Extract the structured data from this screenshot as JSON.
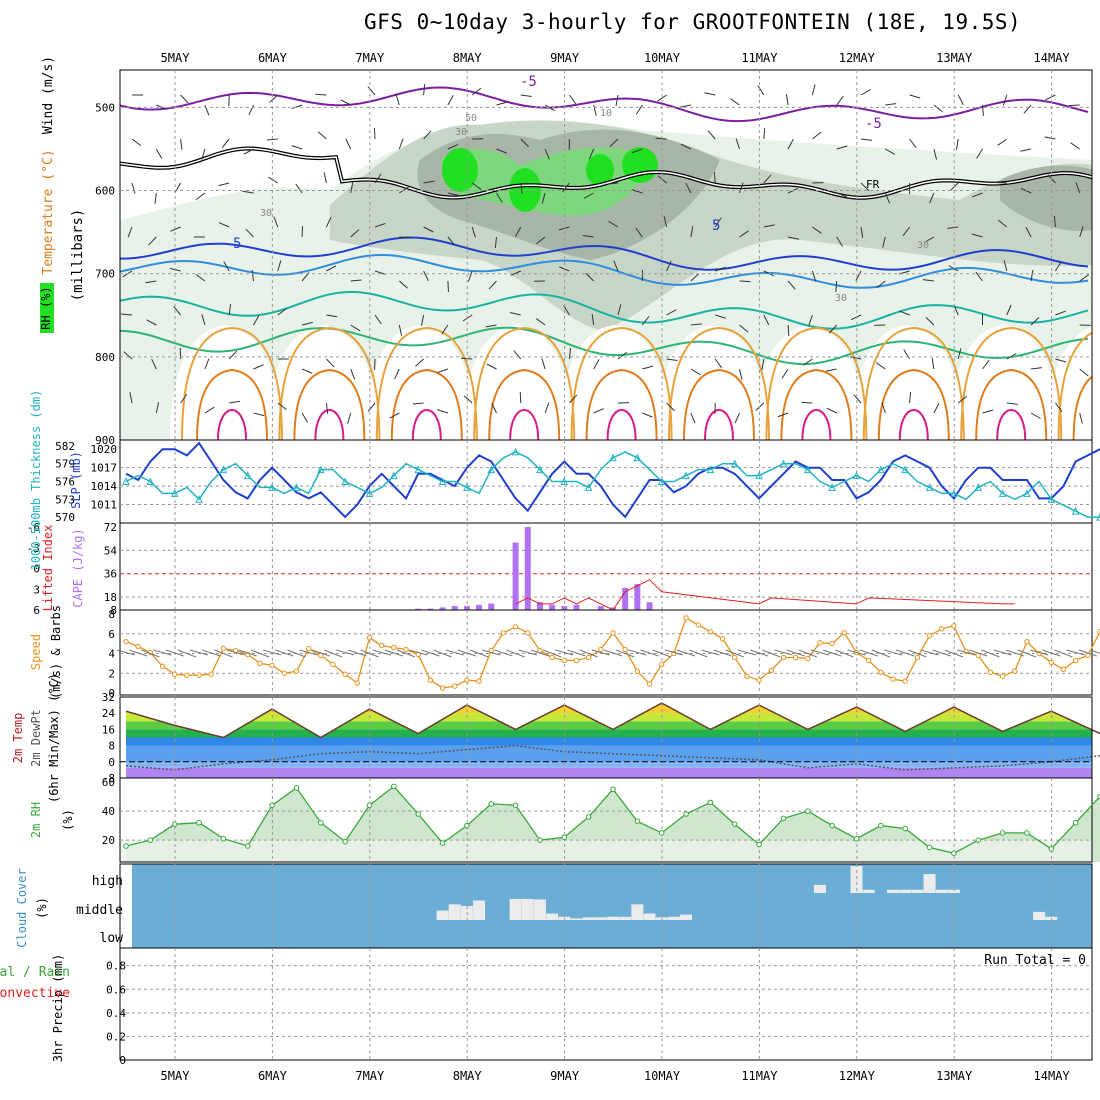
{
  "title": "GFS 0~10day 3-hourly for GROOTFONTEIN (18E, 19.5S)",
  "days": [
    "5MAY",
    "6MAY",
    "7MAY",
    "8MAY",
    "9MAY",
    "10MAY",
    "11MAY",
    "12MAY",
    "13MAY",
    "14MAY"
  ],
  "colors": {
    "rh_light": "#e8f2e8",
    "rh_gray1": "#c8d6c8",
    "rh_gray2": "#a7b6a7",
    "rh_green1": "#7dd87d",
    "rh_green2": "#21e021",
    "slp": "#1f3fcf",
    "thickness": "#22b3c3",
    "cape": "#b072f2",
    "lifted_index": "#e02020",
    "wind": "#e8921a",
    "barb": "#777777",
    "rh2m": "#3aa83a",
    "cloud_bg": "#6aaed6",
    "cloud_fill": "#ececec"
  },
  "labels": {
    "upper_wind": "Wind (m/s)",
    "upper_temp": "Temperature (°C)",
    "upper_rh": "RH (%)",
    "upper_axis": "(millibars)",
    "slp": "SLP (mb)",
    "thickness": "1000-500mb Thickness (dm)",
    "cape": "CAPE (J/kg)",
    "lifted": "Lifted Index",
    "wind10": "10m Wind",
    "speed": "Speed",
    "barbs": "(m/s) & Barbs",
    "temp2m": "2m Temp",
    "dewpt": "2m DewPt",
    "minmax": "(6hr Min/Max) (°C)",
    "rh2m": "2m RH",
    "rh2m_unit": "(%)",
    "cloud": "Cloud Cover",
    "cloud_unit": "(%)",
    "precip": "3hr Precip (mm)",
    "total_rain": "Total / Rain",
    "convective": "Convective",
    "run_total": "Run Total = 0",
    "fr": "FR"
  },
  "chart_data": [
    {
      "type": "heatmap",
      "name": "upper_air",
      "pressure_ticks": [
        500,
        600,
        700,
        800,
        900
      ],
      "ylim": [
        455,
        900
      ],
      "contour_labels": [
        "-5",
        "-5",
        "5",
        "5",
        "10",
        "50",
        "30",
        "30",
        "30",
        "30"
      ],
      "isotherm_levels": [
        -5,
        0,
        5,
        10,
        15,
        20,
        25,
        30
      ],
      "rh_levels": [
        10,
        30,
        50,
        70,
        90
      ]
    },
    {
      "type": "line",
      "name": "slp_thickness",
      "slp_ticks": [
        1011,
        1014,
        1017,
        1020
      ],
      "thickness_ticks": [
        570,
        573,
        576,
        579,
        582
      ],
      "x": [
        0,
        1,
        2,
        3,
        4,
        5,
        6,
        7,
        8,
        9,
        10,
        11,
        12,
        13,
        14,
        15,
        16,
        17,
        18,
        19,
        20,
        21,
        22,
        23,
        24,
        25,
        26,
        27,
        28,
        29,
        30,
        31,
        32,
        33,
        34,
        35,
        36,
        37,
        38,
        39,
        40,
        41,
        42,
        43,
        44,
        45,
        46,
        47,
        48,
        49,
        50,
        51,
        52,
        53,
        54,
        55,
        56,
        57,
        58,
        59,
        60,
        61,
        62,
        63,
        64,
        65,
        66,
        67,
        68,
        69,
        70,
        71,
        72,
        73,
        74,
        75,
        76,
        77,
        78,
        79,
        80
      ],
      "series": [
        {
          "name": "SLP (mb)",
          "values": [
            1016,
            1015,
            1018,
            1020,
            1020,
            1019,
            1021,
            1018,
            1015,
            1013,
            1012,
            1015,
            1017,
            1015,
            1013,
            1012,
            1013,
            1011,
            1009,
            1011,
            1014,
            1016,
            1014,
            1012,
            1016,
            1016,
            1015,
            1014,
            1017,
            1019,
            1018,
            1015,
            1012,
            1010,
            1013,
            1016,
            1018,
            1016,
            1016,
            1014,
            1011,
            1009,
            1012,
            1015,
            1015,
            1013,
            1014,
            1016,
            1017,
            1017,
            1016,
            1014,
            1012,
            1014,
            1016,
            1018,
            1017,
            1017,
            1015,
            1015,
            1012,
            1013,
            1015,
            1018,
            1019,
            1018,
            1017,
            1014,
            1012,
            1015,
            1017,
            1017,
            1015,
            1015,
            1015,
            1012,
            1012,
            1014,
            1018,
            1019,
            1020
          ]
        },
        {
          "name": "Thickness (dm)",
          "values": [
            576,
            577,
            576,
            574,
            574,
            575,
            573,
            576,
            578,
            579,
            577,
            575,
            575,
            574,
            575,
            574,
            578,
            578,
            576,
            575,
            574,
            575,
            577,
            579,
            578,
            577,
            576,
            576,
            575,
            574,
            578,
            580,
            581,
            580,
            578,
            576,
            576,
            576,
            575,
            578,
            580,
            581,
            580,
            578,
            576,
            576,
            577,
            578,
            578,
            579,
            579,
            577,
            577,
            578,
            579,
            579,
            578,
            576,
            575,
            576,
            577,
            576,
            578,
            579,
            578,
            576,
            575,
            574,
            574,
            573,
            575,
            576,
            574,
            573,
            574,
            576,
            573,
            572,
            571,
            570,
            570
          ]
        }
      ]
    },
    {
      "type": "bar",
      "name": "cape_lifted",
      "cape_ticks": [
        8,
        18,
        36,
        54,
        72
      ],
      "li_ticks": [
        "6",
        "3",
        "0",
        "-3",
        "-6"
      ],
      "x": [
        24,
        25,
        26,
        27,
        28,
        29,
        30,
        32,
        33,
        34,
        35,
        36,
        37,
        39,
        40,
        41,
        42,
        43
      ],
      "cape": [
        9,
        9,
        10,
        11,
        11,
        12,
        13,
        60,
        72,
        14,
        12,
        11,
        12,
        11,
        10,
        25,
        28,
        14
      ],
      "lifted_index_x": [
        32,
        33,
        34,
        35,
        36,
        37,
        38,
        39,
        40,
        41,
        42,
        43,
        44,
        52,
        53,
        60,
        61,
        72,
        73
      ],
      "lifted_index": [
        5,
        4,
        5,
        5,
        4,
        5,
        4,
        5,
        6,
        3,
        2,
        1,
        3,
        5,
        4,
        5,
        4,
        5,
        5
      ]
    },
    {
      "type": "line",
      "name": "wind10m",
      "ylim": [
        0,
        8
      ],
      "yticks": [
        0,
        2,
        4,
        6,
        8
      ],
      "x": [
        0,
        1,
        2,
        3,
        4,
        5,
        6,
        7,
        8,
        9,
        10,
        11,
        12,
        13,
        14,
        15,
        16,
        17,
        18,
        19,
        20,
        21,
        22,
        23,
        24,
        25,
        26,
        27,
        28,
        29,
        30,
        31,
        32,
        33,
        34,
        35,
        36,
        37,
        38,
        39,
        40,
        41,
        42,
        43,
        44,
        45,
        46,
        47,
        48,
        49,
        50,
        51,
        52,
        53,
        54,
        55,
        56,
        57,
        58,
        59,
        60,
        61,
        62,
        63,
        64,
        65,
        66,
        67,
        68,
        69,
        70,
        71,
        72,
        73,
        74,
        75,
        76,
        77,
        78,
        79,
        80
      ],
      "values": [
        5.2,
        4.7,
        4.1,
        2.7,
        1.9,
        1.8,
        1.8,
        1.9,
        4.5,
        4.3,
        3.9,
        3.0,
        2.8,
        2.0,
        2.2,
        4.5,
        3.8,
        2.9,
        1.9,
        1.0,
        5.6,
        4.8,
        4.6,
        4.4,
        3.9,
        1.3,
        0.5,
        0.7,
        1.3,
        1.2,
        4.3,
        6.1,
        6.7,
        6.1,
        4.3,
        3.6,
        3.3,
        3.3,
        3.6,
        4.4,
        6.1,
        4.4,
        2.2,
        0.9,
        2.9,
        4.0,
        7.6,
        6.9,
        6.2,
        5.5,
        3.6,
        1.7,
        1.3,
        2.3,
        3.6,
        3.6,
        3.5,
        5.1,
        5.0,
        6.1,
        4.1,
        3.3,
        2.1,
        1.4,
        1.2,
        3.6,
        5.8,
        6.5,
        6.8,
        4.2,
        3.8,
        2.1,
        1.7,
        2.2,
        5.2,
        4.0,
        3.1,
        2.4,
        3.3,
        3.8,
        6.2
      ]
    },
    {
      "type": "area",
      "name": "temp2m",
      "ylim": [
        -8,
        32
      ],
      "yticks": [
        -8,
        0,
        8,
        16,
        24,
        32
      ],
      "x": [
        0,
        4,
        8,
        12,
        16,
        20,
        24,
        28,
        32,
        36,
        40,
        44,
        48,
        52,
        56,
        60,
        64,
        68,
        72,
        76,
        80
      ],
      "temperature": [
        25,
        18,
        12,
        26,
        12,
        26,
        14,
        28,
        16,
        28,
        16,
        29,
        16,
        28,
        16,
        27,
        15,
        27,
        15,
        25,
        14
      ],
      "dewpoint": [
        -2,
        -4,
        -1,
        1,
        4,
        5,
        4,
        6,
        8,
        5,
        4,
        3,
        2,
        1,
        -3,
        -1,
        -4,
        -3,
        -2,
        0,
        3
      ]
    },
    {
      "type": "area",
      "name": "rh2m",
      "ylim": [
        5,
        60
      ],
      "yticks": [
        20,
        40,
        60
      ],
      "x": [
        0,
        2,
        4,
        6,
        8,
        10,
        12,
        14,
        16,
        18,
        20,
        22,
        24,
        26,
        28,
        30,
        32,
        34,
        36,
        38,
        40,
        42,
        44,
        46,
        48,
        50,
        52,
        54,
        56,
        58,
        60,
        62,
        64,
        66,
        68,
        70,
        72,
        74,
        76,
        78,
        80
      ],
      "values": [
        16,
        20,
        31,
        32,
        21,
        16,
        44,
        56,
        32,
        19,
        44,
        57,
        38,
        18,
        30,
        45,
        44,
        20,
        22,
        36,
        55,
        33,
        25,
        38,
        46,
        31,
        17,
        35,
        40,
        30,
        21,
        30,
        28,
        15,
        11,
        20,
        25,
        25,
        14,
        32,
        50
      ]
    },
    {
      "type": "bar",
      "name": "cloud_cover",
      "levels": [
        "high",
        "middle",
        "low"
      ],
      "middle_x": [
        26,
        27,
        28,
        29,
        30,
        32,
        33,
        34,
        35,
        36,
        37,
        38,
        39,
        40,
        41,
        42,
        43,
        44,
        45,
        46,
        47,
        48,
        49,
        75,
        76
      ],
      "middle_values": [
        35,
        58,
        52,
        72,
        0,
        78,
        78,
        76,
        24,
        12,
        6,
        10,
        10,
        12,
        12,
        58,
        24,
        10,
        12,
        20,
        0,
        0,
        0,
        30,
        12
      ],
      "high_x": [
        57,
        60,
        61,
        63,
        64,
        65,
        66,
        67,
        68
      ],
      "high_values": [
        30,
        100,
        12,
        12,
        12,
        12,
        70,
        12,
        12
      ]
    },
    {
      "type": "bar",
      "name": "precip3h",
      "ylim": [
        0,
        0.95
      ],
      "yticks": [
        0,
        0.2,
        0.4,
        0.6,
        0.8
      ],
      "values": []
    }
  ]
}
